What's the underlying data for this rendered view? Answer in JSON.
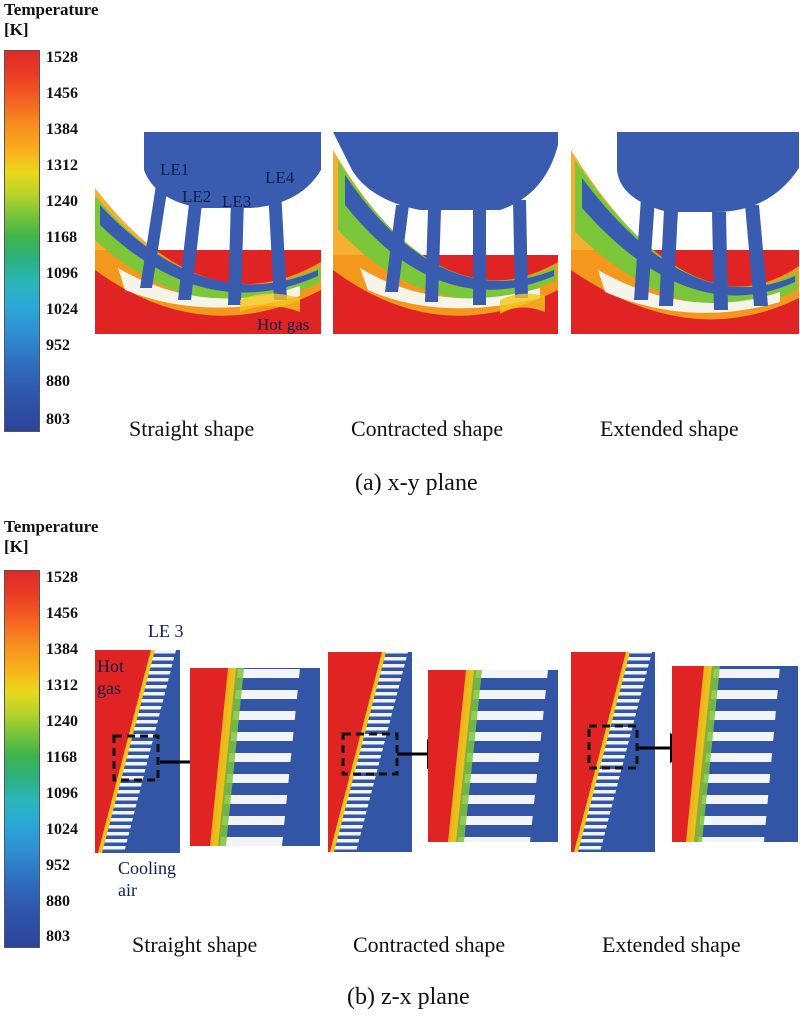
{
  "colorbar": {
    "title_line1": "Temperature",
    "title_line2": "[K]",
    "ticks": [
      "1528",
      "1456",
      "1384",
      "1312",
      "1240",
      "1168",
      "1096",
      "1024",
      "952",
      "880",
      "803"
    ]
  },
  "panel_a": {
    "caption": "(a) x-y plane",
    "labels": {
      "le1": "LE1",
      "le2": "LE2",
      "le3": "LE3",
      "le4": "LE4",
      "hot_gas": "Hot gas"
    },
    "shapes": [
      "Straight shape",
      "Contracted shape",
      "Extended shape"
    ]
  },
  "panel_b": {
    "caption": "(b) z-x plane",
    "labels": {
      "le3": "LE 3",
      "hot": "Hot",
      "gas": "gas",
      "cooling": "Cooling",
      "air": "air"
    },
    "shapes": [
      "Straight shape",
      "Contracted shape",
      "Extended shape"
    ]
  },
  "colors": {
    "hot": "#e02424",
    "cool": "#3355a5",
    "mid": "#f0c419",
    "green": "#41b34a"
  }
}
